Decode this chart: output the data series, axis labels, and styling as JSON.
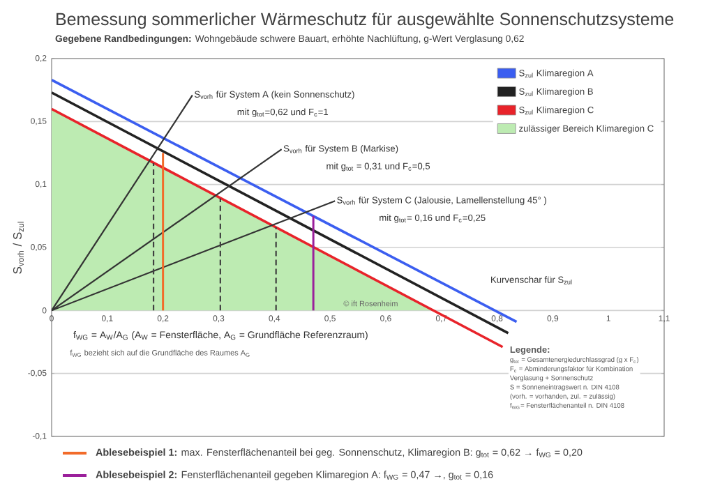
{
  "chart_data": {
    "type": "line",
    "title": "Bemessung sommerlicher Wärmeschutz für ausgewählte Sonnenschutzsysteme",
    "subtitle": "**Gegebene Randbedingungen:** Wohngebäude schwere Bauart, erhöhte Nachlüftung, g-Wert Verglasung 0,62",
    "xlabel": "f$_{WG}$ = A$_{W}$/A$_{G}$ (A$_{W}$ = Fensterfläche, A$_{G}$ = Grundfläche Referenzraum)",
    "ylabel": "S$_{vorh}$ / S$_{zul}$",
    "xlim": [
      0,
      1.1
    ],
    "ylim": [
      -0.1,
      0.2
    ],
    "xticks": [
      0,
      {
        "value": 0.1,
        "label": "0,1"
      },
      {
        "value": 0.2,
        "label": "0,2"
      },
      {
        "value": 0.3,
        "label": "0,3"
      },
      {
        "value": 0.4,
        "label": "0,4"
      },
      {
        "value": 0.5,
        "label": "0,5"
      },
      {
        "value": 0.6,
        "label": "0,6"
      },
      {
        "value": 0.7,
        "label": "0,7"
      },
      {
        "value": 0.8,
        "label": "0,8"
      },
      {
        "value": 0.9,
        "label": "0,9"
      },
      1,
      {
        "value": 1.1,
        "label": "1,1"
      }
    ],
    "yticks": [
      {
        "value": -0.1,
        "label": "-0,1"
      },
      {
        "value": -0.05,
        "label": "-0,05"
      },
      0,
      {
        "value": 0.05,
        "label": "0,05"
      },
      {
        "value": 0.1,
        "label": "0,1"
      },
      {
        "value": 0.15,
        "label": "0,15"
      },
      {
        "value": 0.2,
        "label": "0,2"
      }
    ],
    "grid": "y",
    "legend": "top right",
    "series": [
      {
        "name": "S$_{zul}$ Klimaregion A",
        "color": "#3b5ef0",
        "x": [
          0,
          0.835
        ],
        "values": [
          0.183,
          -0.009
        ]
      },
      {
        "name": "S$_{zul}$ Klimaregion B",
        "color": "#222222",
        "x": [
          0,
          0.82
        ],
        "values": [
          0.173,
          -0.018
        ]
      },
      {
        "name": "S$_{zul}$ Klimaregion C",
        "color": "#e8232a",
        "x": [
          0,
          0.81
        ],
        "values": [
          0.16,
          -0.029
        ]
      },
      {
        "name": "zulässiger Bereich Klimaregion C",
        "type": "area",
        "color": "#bdebb2",
        "x": [
          0,
          0.685
        ],
        "values": [
          0.16,
          0
        ]
      },
      {
        "color": "#333333",
        "x": [
          0,
          0.253
        ],
        "values": [
          0,
          0.171
        ]
      },
      {
        "color": "#333333",
        "x": [
          0,
          0.413
        ],
        "values": [
          0,
          0.128
        ]
      },
      {
        "color": "#333333",
        "x": [
          0,
          0.509
        ],
        "values": [
          0,
          0.087
        ]
      },
      {
        "color": "#404040",
        "line_style": "dashed",
        "x": [
          0.183,
          0.183
        ],
        "values": [
          0,
          0.117
        ]
      },
      {
        "color": "#404040",
        "line_style": "dashed",
        "x": [
          0.303,
          0.303
        ],
        "values": [
          0,
          0.089
        ]
      },
      {
        "color": "#404040",
        "line_style": "dashed",
        "x": [
          0.403,
          0.403
        ],
        "values": [
          0,
          0.066
        ]
      },
      {
        "color": "#f26b2a",
        "x": [
          0.2,
          0.2
        ],
        "values": [
          0,
          0.125
        ]
      },
      {
        "color": "#9b1f9b",
        "x": [
          0.47,
          0.47
        ],
        "values": [
          0,
          0.075
        ]
      }
    ],
    "annotations": [
      {
        "text": "S$_{vorh}$ für System A (kein Sonnenschutz)",
        "x": 0.253,
        "y": 0.171
      },
      "mit g$_{tot}$=0,62 und F$_{c}$=1",
      {
        "text": "S$_{vorh}$ für System B (Markise)",
        "x": 0.413,
        "y": 0.128
      },
      "mit g$_{tot}$ = 0,31 und F$_{c}$=0,5",
      {
        "text": "S$_{vorh}$ für System C (Jalousie, Lamellenstellung 45° )",
        "x": 0.509,
        "y": 0.087
      },
      "mit g$_{tot}$= 0,16 und F$_{c}$=0,25",
      "Kurvenschar für S$_{zul}$",
      "© ift Rosenheim",
      "f$_{WG}$ bezieht sich auf die Grundfläche des Raumes A$_{G}$",
      "Legende:",
      "g$_{tot}$ = Gesamtenergiedurchlassgrad (g x F$_{c}$)",
      "F$_{c}$ = Abminderungsfaktor für Kombination",
      "Verglasung + Sonnenschutz",
      "S = Sonneneintragswert n. DIN 4108",
      "(vorh. = vorhanden, zul. = zulässig)",
      "f$_{WG}$= Fensterflächenanteil n. DIN 4108",
      "**Ablesebeispiel 1:** max. Fensterflächenanteil bei geg. Sonnenschutz, Klimaregion B: g$_{tot}$ = 0,62 → f$_{WG}$ = 0,20",
      "**Ablesebeispiel 2:** Fensterflächenanteil gegeben Klimaregion A: f$_{WG}$ = 0,47 →, g$_{tot}$ = 0,16"
    ]
  }
}
